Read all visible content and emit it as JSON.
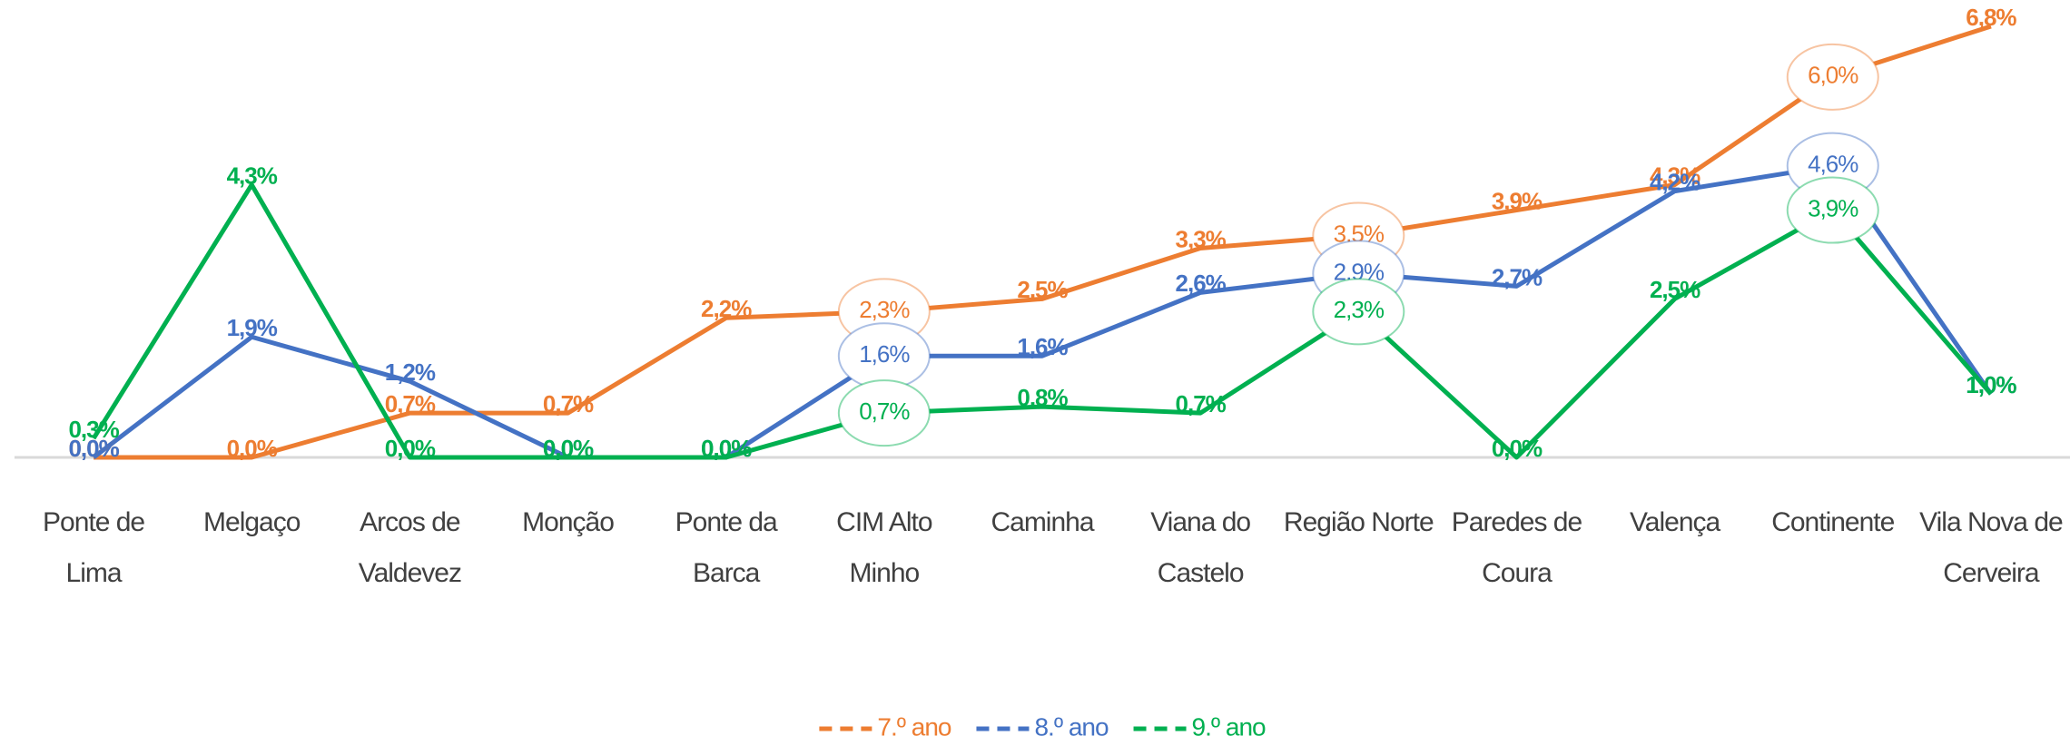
{
  "chart_data": {
    "type": "line",
    "categories": [
      "Ponte de Lima",
      "Melgaço",
      "Arcos de Valdevez",
      "Monção",
      "Ponte da Barca",
      "CIM Alto Minho",
      "Caminha",
      "Viana do Castelo",
      "Região Norte",
      "Paredes  de Coura",
      "Valença",
      "Continente",
      "Vila Nova de Cerveira"
    ],
    "series": [
      {
        "name": "7.º ano",
        "color": "#ed7d31",
        "values": [
          0.0,
          0.0,
          0.7,
          0.7,
          2.2,
          2.3,
          2.5,
          3.3,
          3.5,
          3.9,
          4.3,
          6.0,
          6.8
        ],
        "value_labels": [
          "0,0%",
          "0,0%",
          "0,7%",
          "0,7%",
          "2,2%",
          "2,3%",
          "2,5%",
          "3,3%",
          "3,5%",
          "3,9%",
          "4,3%",
          "6,0%",
          "6,8%"
        ]
      },
      {
        "name": "8.º ano",
        "color": "#4472c4",
        "values": [
          0.0,
          1.9,
          1.2,
          0.0,
          0.0,
          1.6,
          1.6,
          2.6,
          2.9,
          2.7,
          4.2,
          4.6,
          1.0
        ],
        "value_labels": [
          "0,0%",
          "1,9%",
          "1,2%",
          "0,0%",
          "0,0%",
          "1,6%",
          "1,6%",
          "2,6%",
          "2,9%",
          "2,7%",
          "4,2%",
          "4,6%",
          "1,0%"
        ]
      },
      {
        "name": "9.º ano",
        "color": "#00b050",
        "values": [
          0.3,
          4.3,
          0.0,
          0.0,
          0.0,
          0.7,
          0.8,
          0.7,
          2.3,
          0.0,
          2.5,
          3.9,
          1.0
        ],
        "value_labels": [
          "0,3%",
          "4,3%",
          "0,0%",
          "0,0%",
          "0,0%",
          "0,7%",
          "0,8%",
          "0,7%",
          "2,3%",
          "0,0%",
          "2,5%",
          "3,9%",
          "1,0%"
        ]
      }
    ],
    "highlighted_categories": [
      5,
      8,
      11
    ],
    "ylim": [
      0,
      7
    ],
    "legend": "bottom"
  }
}
